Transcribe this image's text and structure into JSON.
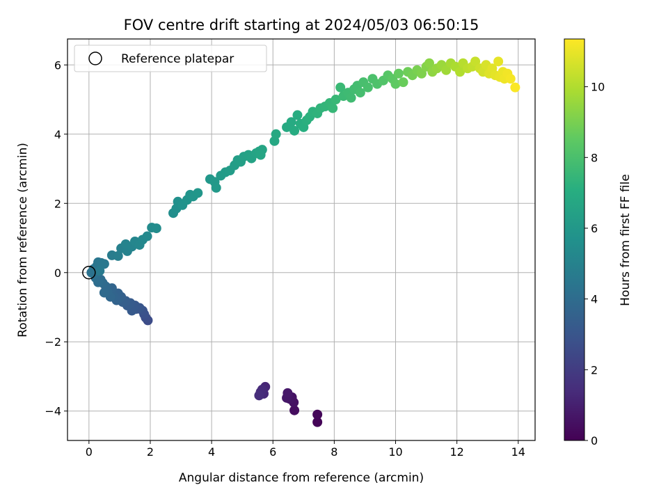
{
  "chart_data": {
    "type": "scatter",
    "title": "FOV centre drift starting at 2024/05/03 06:50:15",
    "xlabel": "Angular distance from reference (arcmin)",
    "ylabel": "Rotation from reference (arcmin)",
    "xlim": [
      -0.7,
      14.55
    ],
    "ylim": [
      -4.85,
      6.75
    ],
    "x_ticks": [
      0,
      2,
      4,
      6,
      8,
      10,
      12,
      14
    ],
    "y_ticks": [
      -4,
      -2,
      0,
      2,
      4,
      6
    ],
    "grid": true,
    "colormap": "viridis",
    "colorbar": {
      "label": "Hours from first FF file",
      "range": [
        0,
        11.35
      ],
      "ticks": [
        0,
        2,
        4,
        6,
        8,
        10
      ]
    },
    "legend": {
      "placement": "top-left",
      "entries": [
        {
          "label": "Reference platepar",
          "marker": "open-circle"
        }
      ]
    },
    "reference_point": {
      "x": 0,
      "y": 0
    },
    "series": [
      {
        "points": [
          [
            7.45,
            -4.32,
            0.1
          ],
          [
            7.45,
            -4.1,
            0.2
          ],
          [
            6.7,
            -3.98,
            0.4
          ],
          [
            6.68,
            -3.75,
            0.5
          ],
          [
            6.62,
            -3.6,
            0.55
          ],
          [
            6.55,
            -3.65,
            0.6
          ],
          [
            6.5,
            -3.55,
            0.65
          ],
          [
            6.45,
            -3.62,
            0.7
          ],
          [
            6.48,
            -3.48,
            0.75
          ],
          [
            5.75,
            -3.3,
            1.2
          ],
          [
            5.7,
            -3.5,
            1.3
          ],
          [
            5.65,
            -3.38,
            1.35
          ],
          [
            5.6,
            -3.45,
            1.4
          ],
          [
            5.55,
            -3.55,
            1.45
          ],
          [
            1.92,
            -1.38,
            2.6
          ],
          [
            1.85,
            -1.3,
            2.7
          ],
          [
            1.8,
            -1.2,
            2.8
          ],
          [
            1.75,
            -1.1,
            2.9
          ],
          [
            1.65,
            -1.02,
            3.0
          ],
          [
            1.55,
            -1.05,
            3.05
          ],
          [
            1.5,
            -0.95,
            3.1
          ],
          [
            1.45,
            -0.98,
            3.15
          ],
          [
            1.4,
            -1.1,
            3.2
          ],
          [
            1.35,
            -0.88,
            3.25
          ],
          [
            1.25,
            -0.95,
            3.3
          ],
          [
            1.2,
            -0.82,
            3.35
          ],
          [
            1.1,
            -0.85,
            3.4
          ],
          [
            1.05,
            -0.7,
            3.45
          ],
          [
            1.0,
            -0.75,
            3.5
          ],
          [
            0.95,
            -0.6,
            3.55
          ],
          [
            0.9,
            -0.8,
            3.6
          ],
          [
            0.8,
            -0.68,
            3.65
          ],
          [
            0.75,
            -0.45,
            3.7
          ],
          [
            0.7,
            -0.7,
            3.75
          ],
          [
            0.6,
            -0.55,
            3.8
          ],
          [
            0.55,
            -0.4,
            3.85
          ],
          [
            0.5,
            -0.58,
            3.9
          ],
          [
            0.45,
            -0.3,
            3.95
          ],
          [
            0.38,
            -0.2,
            4.0
          ],
          [
            0.3,
            -0.28,
            4.05
          ],
          [
            0.22,
            -0.15,
            4.1
          ],
          [
            0.18,
            -0.05,
            4.15
          ],
          [
            0.12,
            0.02,
            4.2
          ],
          [
            0.08,
            0.0,
            4.25
          ],
          [
            0.15,
            0.1,
            4.3
          ],
          [
            0.25,
            0.18,
            4.4
          ],
          [
            0.3,
            0.3,
            4.45
          ],
          [
            0.4,
            0.28,
            4.5
          ],
          [
            0.5,
            0.25,
            4.55
          ],
          [
            0.35,
            0.05,
            4.6
          ],
          [
            0.75,
            0.5,
            4.7
          ],
          [
            0.95,
            0.48,
            4.8
          ],
          [
            1.05,
            0.7,
            4.9
          ],
          [
            1.25,
            0.62,
            5.0
          ],
          [
            1.2,
            0.82,
            5.05
          ],
          [
            1.4,
            0.75,
            5.1
          ],
          [
            1.5,
            0.9,
            5.15
          ],
          [
            1.65,
            0.8,
            5.2
          ],
          [
            1.75,
            0.95,
            5.25
          ],
          [
            1.9,
            1.05,
            5.3
          ],
          [
            2.05,
            1.3,
            5.4
          ],
          [
            2.2,
            1.28,
            5.45
          ],
          [
            2.75,
            1.72,
            5.55
          ],
          [
            2.85,
            1.85,
            5.6
          ],
          [
            2.9,
            2.05,
            5.65
          ],
          [
            3.05,
            1.95,
            5.7
          ],
          [
            3.2,
            2.1,
            5.75
          ],
          [
            3.3,
            2.25,
            5.8
          ],
          [
            3.4,
            2.2,
            5.85
          ],
          [
            3.55,
            2.3,
            5.9
          ],
          [
            3.95,
            2.7,
            5.95
          ],
          [
            4.1,
            2.62,
            6.0
          ],
          [
            4.15,
            2.45,
            6.05
          ],
          [
            4.3,
            2.8,
            6.1
          ],
          [
            4.45,
            2.9,
            6.15
          ],
          [
            4.6,
            2.95,
            6.2
          ],
          [
            4.75,
            3.1,
            6.25
          ],
          [
            4.85,
            3.25,
            6.3
          ],
          [
            4.95,
            3.2,
            6.35
          ],
          [
            5.05,
            3.35,
            6.4
          ],
          [
            5.2,
            3.4,
            6.45
          ],
          [
            5.3,
            3.3,
            6.5
          ],
          [
            5.45,
            3.45,
            6.55
          ],
          [
            5.55,
            3.5,
            6.6
          ],
          [
            5.65,
            3.55,
            6.62
          ],
          [
            5.6,
            3.4,
            6.65
          ],
          [
            6.05,
            3.8,
            6.75
          ],
          [
            6.1,
            4.0,
            6.8
          ],
          [
            6.45,
            4.2,
            6.85
          ],
          [
            6.6,
            4.35,
            6.9
          ],
          [
            6.7,
            4.1,
            6.95
          ],
          [
            6.8,
            4.55,
            7.0
          ],
          [
            6.9,
            4.3,
            7.05
          ],
          [
            7.0,
            4.2,
            7.1
          ],
          [
            7.1,
            4.4,
            7.15
          ],
          [
            7.2,
            4.5,
            7.2
          ],
          [
            7.3,
            4.65,
            7.25
          ],
          [
            7.45,
            4.6,
            7.3
          ],
          [
            7.55,
            4.75,
            7.35
          ],
          [
            7.7,
            4.8,
            7.4
          ],
          [
            7.85,
            4.9,
            7.45
          ],
          [
            7.95,
            4.75,
            7.5
          ],
          [
            8.05,
            5.0,
            7.55
          ],
          [
            8.2,
            5.35,
            7.6
          ],
          [
            8.3,
            5.1,
            7.65
          ],
          [
            8.45,
            5.2,
            7.7
          ],
          [
            8.55,
            5.05,
            7.75
          ],
          [
            8.65,
            5.3,
            7.8
          ],
          [
            8.75,
            5.4,
            7.85
          ],
          [
            8.85,
            5.2,
            7.9
          ],
          [
            8.95,
            5.5,
            7.95
          ],
          [
            9.1,
            5.35,
            8.0
          ],
          [
            9.25,
            5.6,
            8.05
          ],
          [
            9.4,
            5.45,
            8.1
          ],
          [
            9.6,
            5.55,
            8.2
          ],
          [
            9.75,
            5.7,
            8.3
          ],
          [
            9.9,
            5.6,
            8.4
          ],
          [
            10.0,
            5.45,
            8.5
          ],
          [
            10.1,
            5.75,
            8.6
          ],
          [
            10.25,
            5.5,
            8.7
          ],
          [
            10.4,
            5.8,
            8.8
          ],
          [
            10.55,
            5.7,
            8.9
          ],
          [
            10.7,
            5.85,
            9.0
          ],
          [
            10.85,
            5.75,
            9.1
          ],
          [
            11.0,
            5.95,
            9.2
          ],
          [
            11.1,
            6.05,
            9.3
          ],
          [
            11.2,
            5.8,
            9.4
          ],
          [
            11.35,
            5.9,
            9.5
          ],
          [
            11.5,
            6.0,
            9.6
          ],
          [
            11.65,
            5.85,
            9.7
          ],
          [
            11.8,
            6.05,
            9.8
          ],
          [
            11.95,
            5.95,
            9.9
          ],
          [
            12.1,
            5.8,
            10.0
          ],
          [
            12.2,
            6.05,
            10.1
          ],
          [
            12.35,
            5.9,
            10.2
          ],
          [
            12.5,
            5.95,
            10.3
          ],
          [
            12.6,
            6.1,
            10.4
          ],
          [
            12.75,
            5.9,
            10.5
          ],
          [
            12.85,
            5.8,
            10.6
          ],
          [
            12.95,
            6.0,
            10.7
          ],
          [
            13.05,
            5.75,
            10.8
          ],
          [
            13.15,
            5.9,
            10.85
          ],
          [
            13.25,
            5.7,
            10.9
          ],
          [
            13.35,
            6.1,
            10.95
          ],
          [
            13.4,
            5.65,
            11.0
          ],
          [
            13.5,
            5.8,
            11.05
          ],
          [
            13.55,
            5.6,
            11.1
          ],
          [
            13.65,
            5.75,
            11.15
          ],
          [
            13.75,
            5.6,
            11.2
          ],
          [
            13.9,
            5.35,
            11.3
          ]
        ]
      }
    ]
  }
}
